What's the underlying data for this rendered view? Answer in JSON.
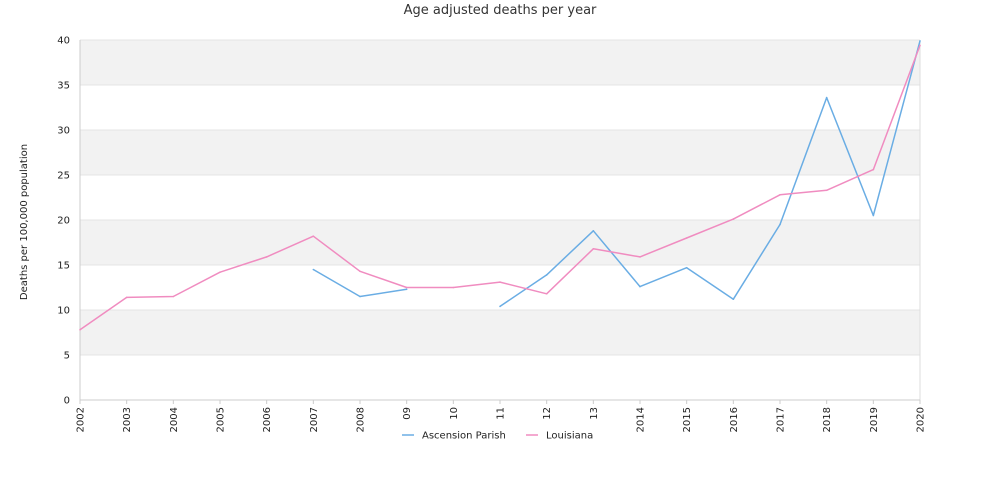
{
  "chart_data": {
    "type": "line",
    "title": "Age adjusted deaths per year",
    "xlabel": "",
    "ylabel": "Deaths per 100,000 population",
    "categories": [
      "2002",
      "2003",
      "2004",
      "2005",
      "2006",
      "2007",
      "2008",
      "09",
      "10",
      "11",
      "12",
      "13",
      "2014",
      "2015",
      "2016",
      "2017",
      "2018",
      "2019",
      "2020"
    ],
    "ylim": [
      0,
      40
    ],
    "yticks": [
      0,
      5,
      10,
      15,
      20,
      25,
      30,
      35,
      40
    ],
    "grid": "alternating horizontal bands",
    "legend_position": "bottom-center",
    "series": [
      {
        "name": "Ascension Parish",
        "color": "#6aade4",
        "values": [
          null,
          null,
          null,
          null,
          null,
          14.5,
          11.5,
          12.3,
          null,
          10.4,
          13.9,
          18.8,
          12.6,
          14.7,
          11.2,
          19.5,
          33.6,
          20.5,
          39.9
        ]
      },
      {
        "name": "Louisiana",
        "color": "#f08cc0",
        "values": [
          7.8,
          11.4,
          11.5,
          14.2,
          15.9,
          18.2,
          14.3,
          12.5,
          12.5,
          13.1,
          11.8,
          16.8,
          15.9,
          18.0,
          20.1,
          22.8,
          23.3,
          25.6,
          39.4
        ]
      }
    ]
  }
}
